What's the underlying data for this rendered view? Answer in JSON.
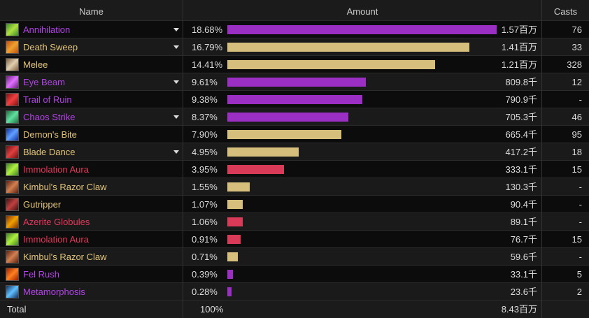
{
  "header": {
    "name": "Name",
    "amount": "Amount",
    "casts": "Casts"
  },
  "rows": [
    {
      "name": "Annihilation",
      "school": "purple",
      "expandable": true,
      "percent": 18.68,
      "percent_label": "18.68%",
      "amount": "1.57百万",
      "casts": "76"
    },
    {
      "name": "Death Sweep",
      "school": "tan",
      "expandable": true,
      "percent": 16.79,
      "percent_label": "16.79%",
      "amount": "1.41百万",
      "casts": "33"
    },
    {
      "name": "Melee",
      "school": "tan",
      "expandable": false,
      "percent": 14.41,
      "percent_label": "14.41%",
      "amount": "1.21百万",
      "casts": "328"
    },
    {
      "name": "Eye Beam",
      "school": "purple",
      "expandable": true,
      "percent": 9.61,
      "percent_label": "9.61%",
      "amount": "809.8千",
      "casts": "12"
    },
    {
      "name": "Trail of Ruin",
      "school": "purple",
      "expandable": false,
      "percent": 9.38,
      "percent_label": "9.38%",
      "amount": "790.9千",
      "casts": "-"
    },
    {
      "name": "Chaos Strike",
      "school": "purple",
      "expandable": true,
      "percent": 8.37,
      "percent_label": "8.37%",
      "amount": "705.3千",
      "casts": "46"
    },
    {
      "name": "Demon's Bite",
      "school": "tan",
      "expandable": false,
      "percent": 7.9,
      "percent_label": "7.90%",
      "amount": "665.4千",
      "casts": "95"
    },
    {
      "name": "Blade Dance",
      "school": "tan",
      "expandable": true,
      "percent": 4.95,
      "percent_label": "4.95%",
      "amount": "417.2千",
      "casts": "18"
    },
    {
      "name": "Immolation Aura",
      "school": "red",
      "expandable": false,
      "percent": 3.95,
      "percent_label": "3.95%",
      "amount": "333.1千",
      "casts": "15"
    },
    {
      "name": "Kimbul's Razor Claw",
      "school": "tan",
      "expandable": false,
      "percent": 1.55,
      "percent_label": "1.55%",
      "amount": "130.3千",
      "casts": "-"
    },
    {
      "name": "Gutripper",
      "school": "tan",
      "expandable": false,
      "percent": 1.07,
      "percent_label": "1.07%",
      "amount": "90.4千",
      "casts": "-"
    },
    {
      "name": "Azerite Globules",
      "school": "red",
      "expandable": false,
      "percent": 1.06,
      "percent_label": "1.06%",
      "amount": "89.1千",
      "casts": "-"
    },
    {
      "name": "Immolation Aura",
      "school": "red",
      "expandable": false,
      "percent": 0.91,
      "percent_label": "0.91%",
      "amount": "76.7千",
      "casts": "15"
    },
    {
      "name": "Kimbul's Razor Claw",
      "school": "tan",
      "expandable": false,
      "percent": 0.71,
      "percent_label": "0.71%",
      "amount": "59.6千",
      "casts": "-"
    },
    {
      "name": "Fel Rush",
      "school": "purple",
      "expandable": false,
      "percent": 0.39,
      "percent_label": "0.39%",
      "amount": "33.1千",
      "casts": "5"
    },
    {
      "name": "Metamorphosis",
      "school": "purple",
      "expandable": false,
      "percent": 0.28,
      "percent_label": "0.28%",
      "amount": "23.6千",
      "casts": "2"
    }
  ],
  "total": {
    "name": "Total",
    "percent": "100%",
    "amount": "8.43百万"
  }
}
